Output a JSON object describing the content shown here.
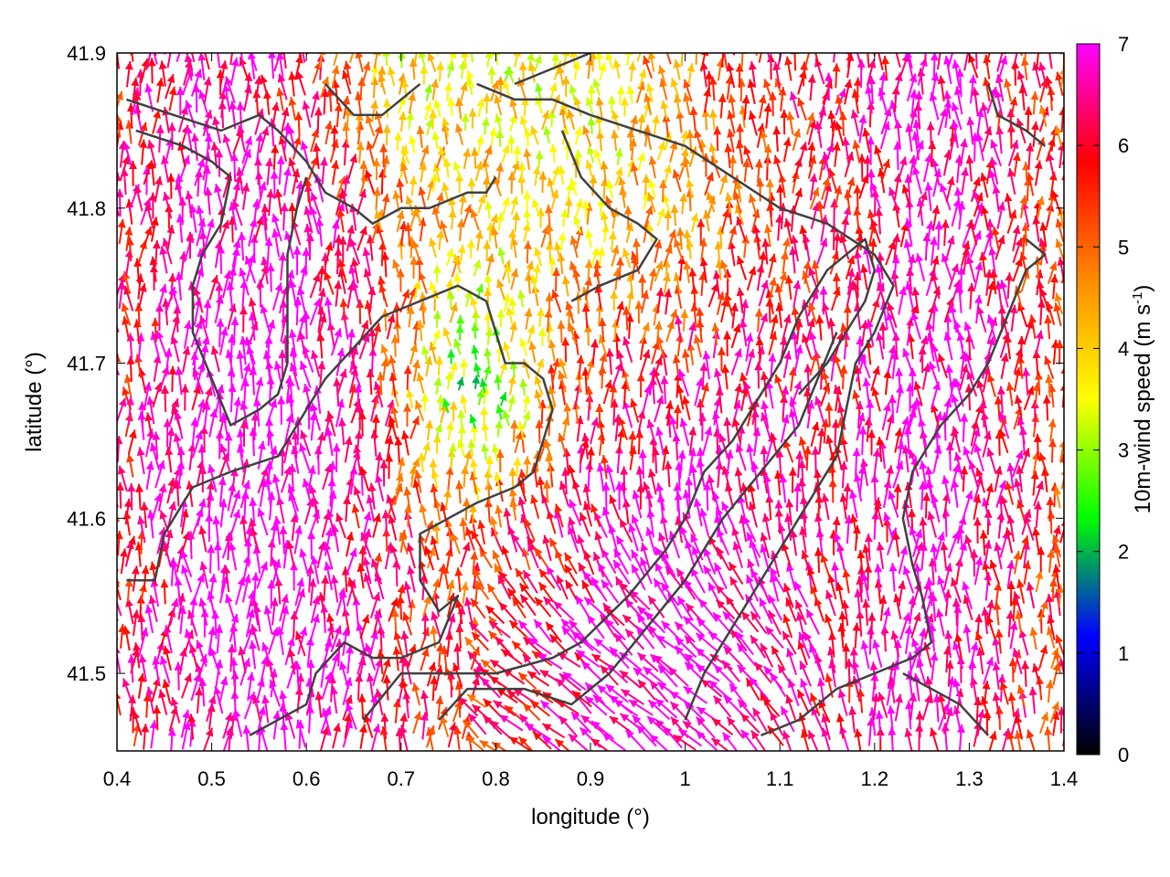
{
  "chart_data": {
    "type": "vector-field",
    "xlabel": "longitude (°)",
    "ylabel": "latitude (°)",
    "xlim": [
      0.4,
      1.4
    ],
    "ylim": [
      41.45,
      41.9
    ],
    "x_ticks": [
      "0.4",
      "0.5",
      "0.6",
      "0.7",
      "0.8",
      "0.9",
      "1",
      "1.1",
      "1.2",
      "1.3",
      "1.4"
    ],
    "y_ticks": [
      "41.5",
      "41.6",
      "41.7",
      "41.8",
      "41.9"
    ],
    "colorbar": {
      "label_main": "10m-wind speed (m s",
      "label_sup": "-1",
      "label_end": ")",
      "range": [
        0,
        7
      ],
      "ticks": [
        "0",
        "1",
        "2",
        "3",
        "4",
        "5",
        "6",
        "7"
      ],
      "palette": [
        "#000000",
        "#0000ff",
        "#00ff00",
        "#ffff00",
        "#ff8c00",
        "#ff0000",
        "#ff00ff"
      ]
    },
    "grid": false,
    "legend": "none",
    "boundary_color": "#404040",
    "boundaries": [
      [
        [
          0.41,
          41.87
        ],
        [
          0.46,
          41.86
        ],
        [
          0.51,
          41.85
        ],
        [
          0.55,
          41.86
        ],
        [
          0.57,
          41.85
        ],
        [
          0.6,
          41.83
        ],
        [
          0.62,
          41.81
        ],
        [
          0.65,
          41.8
        ],
        [
          0.67,
          41.79
        ],
        [
          0.7,
          41.8
        ],
        [
          0.73,
          41.8
        ],
        [
          0.77,
          41.81
        ],
        [
          0.79,
          41.81
        ],
        [
          0.8,
          41.82
        ]
      ],
      [
        [
          0.42,
          41.85
        ],
        [
          0.47,
          41.84
        ],
        [
          0.5,
          41.83
        ],
        [
          0.52,
          41.82
        ],
        [
          0.51,
          41.79
        ],
        [
          0.49,
          41.77
        ],
        [
          0.48,
          41.75
        ],
        [
          0.48,
          41.72
        ],
        [
          0.5,
          41.69
        ],
        [
          0.52,
          41.66
        ],
        [
          0.55,
          41.67
        ],
        [
          0.57,
          41.68
        ],
        [
          0.58,
          41.7
        ],
        [
          0.58,
          41.74
        ],
        [
          0.58,
          41.77
        ],
        [
          0.59,
          41.8
        ],
        [
          0.6,
          41.82
        ]
      ],
      [
        [
          0.41,
          41.56
        ],
        [
          0.44,
          41.56
        ],
        [
          0.45,
          41.59
        ],
        [
          0.48,
          41.62
        ],
        [
          0.52,
          41.63
        ],
        [
          0.57,
          41.64
        ],
        [
          0.6,
          41.67
        ],
        [
          0.62,
          41.69
        ],
        [
          0.65,
          41.71
        ],
        [
          0.68,
          41.73
        ],
        [
          0.72,
          41.74
        ],
        [
          0.76,
          41.75
        ],
        [
          0.79,
          41.74
        ],
        [
          0.8,
          41.72
        ],
        [
          0.81,
          41.7
        ],
        [
          0.83,
          41.7
        ],
        [
          0.85,
          41.69
        ],
        [
          0.86,
          41.67
        ],
        [
          0.85,
          41.65
        ],
        [
          0.84,
          41.63
        ],
        [
          0.82,
          41.62
        ],
        [
          0.78,
          41.61
        ],
        [
          0.75,
          41.6
        ],
        [
          0.72,
          41.59
        ],
        [
          0.72,
          41.56
        ],
        [
          0.74,
          41.54
        ],
        [
          0.76,
          41.55
        ],
        [
          0.74,
          41.52
        ],
        [
          0.7,
          41.51
        ],
        [
          0.67,
          41.51
        ],
        [
          0.64,
          41.52
        ],
        [
          0.61,
          41.5
        ],
        [
          0.6,
          41.48
        ],
        [
          0.57,
          41.47
        ],
        [
          0.54,
          41.46
        ]
      ],
      [
        [
          0.66,
          41.47
        ],
        [
          0.7,
          41.5
        ],
        [
          0.74,
          41.5
        ],
        [
          0.8,
          41.5
        ],
        [
          0.86,
          41.51
        ],
        [
          0.89,
          41.52
        ],
        [
          0.94,
          41.55
        ],
        [
          0.98,
          41.58
        ],
        [
          1.0,
          41.6
        ],
        [
          1.02,
          41.63
        ],
        [
          1.05,
          41.65
        ],
        [
          1.08,
          41.68
        ],
        [
          1.1,
          41.7
        ],
        [
          1.12,
          41.73
        ],
        [
          1.15,
          41.76
        ],
        [
          1.17,
          41.77
        ],
        [
          1.19,
          41.78
        ],
        [
          1.2,
          41.76
        ],
        [
          1.19,
          41.74
        ],
        [
          1.17,
          41.72
        ],
        [
          1.15,
          41.7
        ],
        [
          1.12,
          41.68
        ]
      ],
      [
        [
          0.74,
          41.47
        ],
        [
          0.77,
          41.49
        ],
        [
          0.83,
          41.49
        ],
        [
          0.88,
          41.48
        ],
        [
          0.92,
          41.5
        ],
        [
          0.96,
          41.53
        ],
        [
          1.0,
          41.56
        ],
        [
          1.04,
          41.6
        ],
        [
          1.08,
          41.63
        ],
        [
          1.12,
          41.66
        ],
        [
          1.14,
          41.69
        ],
        [
          1.16,
          41.72
        ]
      ],
      [
        [
          0.78,
          41.88
        ],
        [
          0.82,
          41.87
        ],
        [
          0.86,
          41.87
        ],
        [
          0.9,
          41.86
        ],
        [
          0.95,
          41.85
        ],
        [
          1.0,
          41.84
        ],
        [
          1.05,
          41.82
        ],
        [
          1.1,
          41.8
        ],
        [
          1.15,
          41.79
        ],
        [
          1.2,
          41.77
        ],
        [
          1.22,
          41.75
        ],
        [
          1.2,
          41.72
        ],
        [
          1.18,
          41.7
        ],
        [
          1.17,
          41.67
        ],
        [
          1.16,
          41.64
        ],
        [
          1.12,
          41.6
        ],
        [
          1.08,
          41.56
        ],
        [
          1.05,
          41.53
        ],
        [
          1.02,
          41.5
        ],
        [
          1.0,
          41.47
        ]
      ],
      [
        [
          1.08,
          41.46
        ],
        [
          1.12,
          41.47
        ],
        [
          1.16,
          41.49
        ],
        [
          1.2,
          41.5
        ],
        [
          1.24,
          41.51
        ],
        [
          1.26,
          41.52
        ],
        [
          1.25,
          41.55
        ],
        [
          1.24,
          41.57
        ],
        [
          1.23,
          41.6
        ],
        [
          1.24,
          41.63
        ],
        [
          1.27,
          41.66
        ],
        [
          1.3,
          41.68
        ],
        [
          1.32,
          41.7
        ],
        [
          1.34,
          41.73
        ],
        [
          1.36,
          41.76
        ],
        [
          1.38,
          41.77
        ],
        [
          1.36,
          41.78
        ]
      ],
      [
        [
          1.23,
          41.5
        ],
        [
          1.26,
          41.49
        ],
        [
          1.29,
          41.48
        ],
        [
          1.32,
          41.46
        ]
      ],
      [
        [
          1.32,
          41.88
        ],
        [
          1.33,
          41.86
        ],
        [
          1.36,
          41.85
        ],
        [
          1.38,
          41.84
        ]
      ],
      [
        [
          0.87,
          41.85
        ],
        [
          0.89,
          41.82
        ],
        [
          0.92,
          41.8
        ],
        [
          0.95,
          41.79
        ],
        [
          0.97,
          41.78
        ],
        [
          0.95,
          41.76
        ],
        [
          0.91,
          41.75
        ],
        [
          0.88,
          41.74
        ]
      ],
      [
        [
          0.62,
          41.88
        ],
        [
          0.65,
          41.86
        ],
        [
          0.68,
          41.86
        ],
        [
          0.7,
          41.87
        ],
        [
          0.72,
          41.88
        ]
      ],
      [
        [
          0.82,
          41.88
        ],
        [
          0.86,
          41.89
        ],
        [
          0.9,
          41.9
        ]
      ]
    ]
  }
}
